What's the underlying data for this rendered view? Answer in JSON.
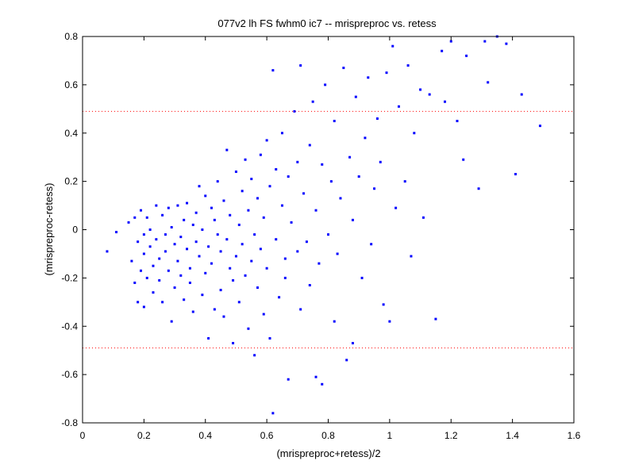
{
  "chart_data": {
    "type": "scatter",
    "title": "077v2 lh FS fwhm0 ic7 -- mrispreproc vs. retess",
    "xlabel": "(mrispreproc+retess)/2",
    "ylabel": "(mrispreproc-retess)",
    "xlim": [
      0,
      1.6
    ],
    "ylim": [
      -0.8,
      0.8
    ],
    "xticks": [
      "0",
      "0.2",
      "0.4",
      "0.6",
      "0.8",
      "1",
      "1.2",
      "1.4",
      "1.6"
    ],
    "yticks": [
      "-0.8",
      "-0.6",
      "-0.4",
      "-0.2",
      "0",
      "0.2",
      "0.4",
      "0.6",
      "0.8"
    ],
    "grid": false,
    "marker_color": "#0000ff",
    "reference_line_color": "#ff0000",
    "reference_lines": [
      0.49,
      -0.49
    ],
    "series": [
      {
        "marker": "dot",
        "points": [
          [
            0.08,
            -0.09
          ],
          [
            0.11,
            -0.01
          ],
          [
            0.15,
            0.03
          ],
          [
            0.16,
            -0.13
          ],
          [
            0.17,
            0.05
          ],
          [
            0.17,
            -0.22
          ],
          [
            0.18,
            -0.05
          ],
          [
            0.18,
            -0.3
          ],
          [
            0.19,
            0.08
          ],
          [
            0.19,
            -0.17
          ],
          [
            0.2,
            -0.02
          ],
          [
            0.2,
            -0.1
          ],
          [
            0.2,
            -0.32
          ],
          [
            0.21,
            0.05
          ],
          [
            0.21,
            -0.2
          ],
          [
            0.22,
            -0.07
          ],
          [
            0.22,
            0.0
          ],
          [
            0.23,
            -0.15
          ],
          [
            0.23,
            -0.26
          ],
          [
            0.24,
            0.1
          ],
          [
            0.24,
            -0.04
          ],
          [
            0.25,
            -0.12
          ],
          [
            0.25,
            -0.21
          ],
          [
            0.26,
            0.06
          ],
          [
            0.26,
            -0.3
          ],
          [
            0.27,
            -0.02
          ],
          [
            0.27,
            -0.09
          ],
          [
            0.28,
            0.09
          ],
          [
            0.28,
            -0.17
          ],
          [
            0.29,
            -0.38
          ],
          [
            0.29,
            0.01
          ],
          [
            0.3,
            -0.06
          ],
          [
            0.3,
            -0.24
          ],
          [
            0.31,
            0.1
          ],
          [
            0.31,
            -0.13
          ],
          [
            0.32,
            -0.03
          ],
          [
            0.32,
            -0.19
          ],
          [
            0.33,
            0.04
          ],
          [
            0.33,
            -0.29
          ],
          [
            0.34,
            -0.08
          ],
          [
            0.34,
            0.11
          ],
          [
            0.35,
            -0.16
          ],
          [
            0.35,
            -0.22
          ],
          [
            0.36,
            0.02
          ],
          [
            0.36,
            -0.34
          ],
          [
            0.37,
            -0.05
          ],
          [
            0.37,
            0.07
          ],
          [
            0.38,
            -0.11
          ],
          [
            0.38,
            0.18
          ],
          [
            0.39,
            -0.27
          ],
          [
            0.39,
            0.0
          ],
          [
            0.4,
            0.14
          ],
          [
            0.4,
            -0.18
          ],
          [
            0.41,
            -0.07
          ],
          [
            0.41,
            -0.45
          ],
          [
            0.42,
            0.09
          ],
          [
            0.42,
            -0.14
          ],
          [
            0.43,
            0.04
          ],
          [
            0.43,
            -0.33
          ],
          [
            0.44,
            -0.02
          ],
          [
            0.44,
            0.2
          ],
          [
            0.45,
            -0.09
          ],
          [
            0.45,
            -0.25
          ],
          [
            0.46,
            0.12
          ],
          [
            0.46,
            -0.36
          ],
          [
            0.47,
            -0.04
          ],
          [
            0.47,
            0.33
          ],
          [
            0.48,
            -0.16
          ],
          [
            0.48,
            0.06
          ],
          [
            0.49,
            -0.21
          ],
          [
            0.49,
            -0.47
          ],
          [
            0.5,
            0.24
          ],
          [
            0.5,
            -0.11
          ],
          [
            0.51,
            0.02
          ],
          [
            0.51,
            -0.3
          ],
          [
            0.52,
            0.16
          ],
          [
            0.52,
            -0.06
          ],
          [
            0.53,
            0.29
          ],
          [
            0.53,
            -0.19
          ],
          [
            0.54,
            -0.41
          ],
          [
            0.54,
            0.08
          ],
          [
            0.55,
            -0.13
          ],
          [
            0.55,
            0.21
          ],
          [
            0.56,
            -0.52
          ],
          [
            0.56,
            -0.02
          ],
          [
            0.57,
            0.13
          ],
          [
            0.57,
            -0.24
          ],
          [
            0.58,
            0.31
          ],
          [
            0.58,
            -0.08
          ],
          [
            0.59,
            -0.35
          ],
          [
            0.59,
            0.05
          ],
          [
            0.6,
            0.37
          ],
          [
            0.6,
            -0.16
          ],
          [
            0.61,
            0.18
          ],
          [
            0.61,
            -0.45
          ],
          [
            0.62,
            0.66
          ],
          [
            0.62,
            -0.76
          ],
          [
            0.63,
            -0.04
          ],
          [
            0.63,
            0.25
          ],
          [
            0.64,
            -0.28
          ],
          [
            0.65,
            0.1
          ],
          [
            0.65,
            0.4
          ],
          [
            0.66,
            -0.12
          ],
          [
            0.66,
            -0.2
          ],
          [
            0.67,
            0.22
          ],
          [
            0.67,
            -0.62
          ],
          [
            0.68,
            0.03
          ],
          [
            0.69,
            0.49
          ],
          [
            0.7,
            -0.09
          ],
          [
            0.7,
            0.28
          ],
          [
            0.71,
            -0.33
          ],
          [
            0.71,
            0.68
          ],
          [
            0.72,
            0.15
          ],
          [
            0.73,
            -0.05
          ],
          [
            0.74,
            0.35
          ],
          [
            0.74,
            -0.23
          ],
          [
            0.75,
            0.53
          ],
          [
            0.76,
            0.08
          ],
          [
            0.76,
            -0.61
          ],
          [
            0.77,
            -0.14
          ],
          [
            0.78,
            0.27
          ],
          [
            0.78,
            -0.64
          ],
          [
            0.79,
            0.6
          ],
          [
            0.8,
            -0.02
          ],
          [
            0.81,
            0.2
          ],
          [
            0.82,
            -0.38
          ],
          [
            0.82,
            0.45
          ],
          [
            0.83,
            -0.1
          ],
          [
            0.84,
            0.13
          ],
          [
            0.85,
            0.67
          ],
          [
            0.86,
            -0.54
          ],
          [
            0.87,
            0.3
          ],
          [
            0.88,
            0.04
          ],
          [
            0.88,
            -0.47
          ],
          [
            0.89,
            0.55
          ],
          [
            0.9,
            0.22
          ],
          [
            0.91,
            -0.2
          ],
          [
            0.92,
            0.38
          ],
          [
            0.93,
            0.63
          ],
          [
            0.94,
            -0.06
          ],
          [
            0.95,
            0.17
          ],
          [
            0.96,
            0.46
          ],
          [
            0.97,
            0.28
          ],
          [
            0.98,
            -0.31
          ],
          [
            0.99,
            0.65
          ],
          [
            1.0,
            -0.38
          ],
          [
            1.01,
            0.76
          ],
          [
            1.02,
            0.09
          ],
          [
            1.03,
            0.51
          ],
          [
            1.05,
            0.2
          ],
          [
            1.06,
            0.68
          ],
          [
            1.07,
            -0.11
          ],
          [
            1.08,
            0.4
          ],
          [
            1.1,
            0.58
          ],
          [
            1.11,
            0.05
          ],
          [
            1.13,
            0.56
          ],
          [
            1.15,
            -0.37
          ],
          [
            1.17,
            0.74
          ],
          [
            1.18,
            0.53
          ],
          [
            1.2,
            0.78
          ],
          [
            1.22,
            0.45
          ],
          [
            1.24,
            0.29
          ],
          [
            1.25,
            0.72
          ],
          [
            1.29,
            0.17
          ],
          [
            1.31,
            0.78
          ],
          [
            1.32,
            0.61
          ],
          [
            1.35,
            0.8
          ],
          [
            1.38,
            0.77
          ],
          [
            1.41,
            0.23
          ],
          [
            1.43,
            0.56
          ],
          [
            1.49,
            0.43
          ]
        ]
      }
    ]
  }
}
